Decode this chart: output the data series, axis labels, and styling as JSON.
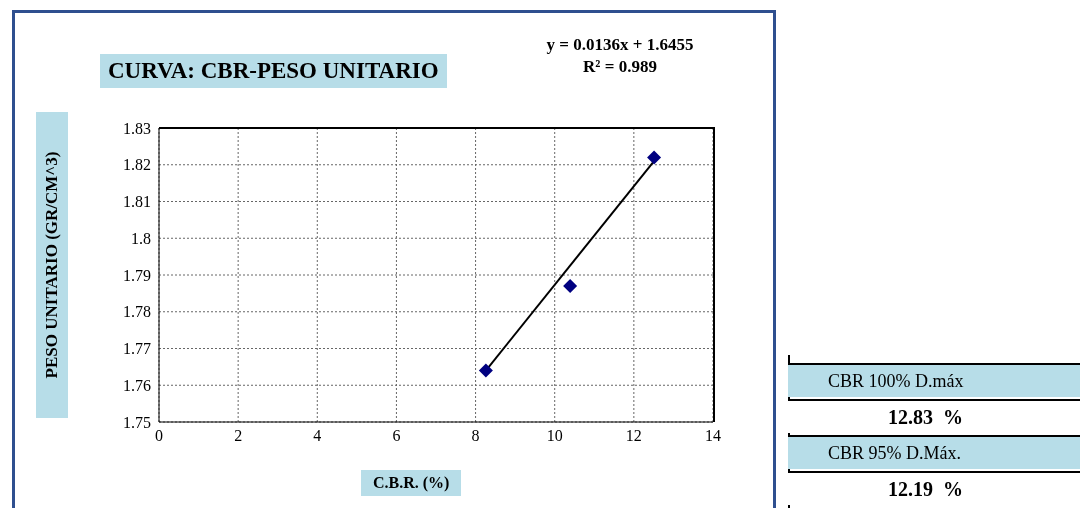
{
  "chart_data": {
    "type": "scatter",
    "title": "CURVA: CBR-PESO UNITARIO",
    "xlabel": "C.B.R. (%)",
    "ylabel": "PESO UNITARIO (GR/CM^3)",
    "series": [
      {
        "color": "#000080",
        "x": [
          8.26,
          10.39,
          12.51
        ],
        "values": [
          1.764,
          1.787,
          1.822
        ],
        "marker": "diamond"
      },
      {
        "type": "line",
        "color": "#000000",
        "x": [
          8.26,
          12.51
        ],
        "values": [
          1.764,
          1.821
        ],
        "marker": "none",
        "line_style": "solid"
      }
    ],
    "xlim": [
      0,
      14
    ],
    "xticks": [
      0,
      2,
      4,
      6,
      8,
      10,
      12,
      14
    ],
    "ylim": [
      1.75,
      1.83
    ],
    "yticks": [
      1.75,
      1.76,
      1.77,
      1.78,
      1.79,
      1.8,
      1.81,
      1.82,
      1.83
    ],
    "grid": true,
    "annotations": [
      "y = 0.0136x + 1.6455",
      "R² = 0.989",
      "CBR 100% D.máx",
      "12.83  %",
      "CBR 95% D.Máx.",
      "12.19  %"
    ]
  }
}
